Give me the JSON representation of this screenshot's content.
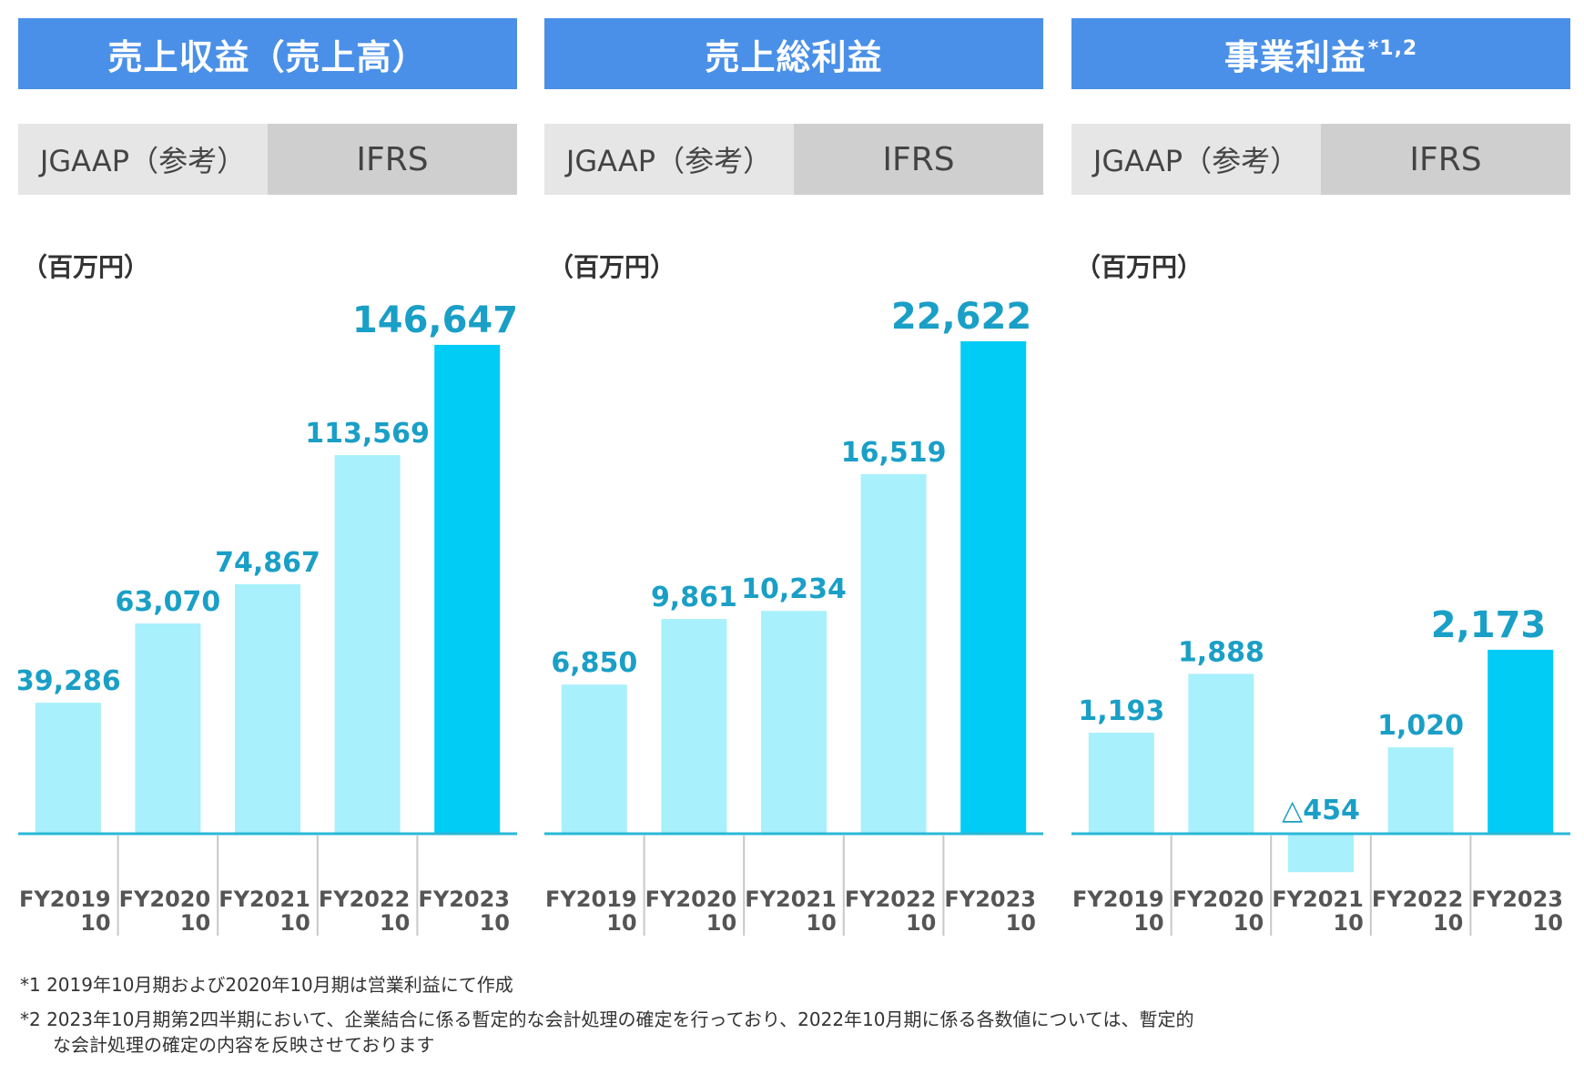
{
  "colors": {
    "title_bg": "#4a90e8",
    "bar_jgaap": "#a8f0fc",
    "bar_ifrs": "#00ccf5",
    "value_label": "#1a9fc6",
    "axis": "#2ab8d6"
  },
  "standards": {
    "jgaap": "JGAAP（参考）",
    "ifrs": "IFRS"
  },
  "unit_label": "（百万円）",
  "chart_data": [
    {
      "type": "bar",
      "title": "売上収益（売上高）",
      "title_sup": "",
      "categories": [
        [
          "FY2019",
          "10"
        ],
        [
          "FY2020",
          "10"
        ],
        [
          "FY2021",
          "10"
        ],
        [
          "FY2022",
          "10"
        ],
        [
          "FY2023",
          "10"
        ]
      ],
      "values": [
        39286,
        63070,
        74867,
        113569,
        146647
      ],
      "value_labels": [
        "39,286",
        "63,070",
        "74,867",
        "113,569",
        "146,647"
      ],
      "standard": [
        "JGAAP",
        "JGAAP",
        "JGAAP",
        "JGAAP",
        "IFRS"
      ],
      "ylim": [
        0,
        160000
      ]
    },
    {
      "type": "bar",
      "title": "売上総利益",
      "title_sup": "",
      "categories": [
        [
          "FY2019",
          "10"
        ],
        [
          "FY2020",
          "10"
        ],
        [
          "FY2021",
          "10"
        ],
        [
          "FY2022",
          "10"
        ],
        [
          "FY2023",
          "10"
        ]
      ],
      "values": [
        6850,
        9861,
        10234,
        16519,
        22622
      ],
      "value_labels": [
        "6,850",
        "9,861",
        "10,234",
        "16,519",
        "22,622"
      ],
      "standard": [
        "JGAAP",
        "JGAAP",
        "JGAAP",
        "JGAAP",
        "IFRS"
      ],
      "ylim": [
        0,
        24500
      ]
    },
    {
      "type": "bar",
      "title": "事業利益",
      "title_sup": "*1,2",
      "categories": [
        [
          "FY2019",
          "10"
        ],
        [
          "FY2020",
          "10"
        ],
        [
          "FY2021",
          "10"
        ],
        [
          "FY2022",
          "10"
        ],
        [
          "FY2023",
          "10"
        ]
      ],
      "values": [
        1193,
        1888,
        -454,
        1020,
        2173
      ],
      "value_labels": [
        "1,193",
        "1,888",
        "△454",
        "1,020",
        "2,173"
      ],
      "standard": [
        "JGAAP",
        "JGAAP",
        "JGAAP",
        "JGAAP",
        "IFRS"
      ],
      "ylim": [
        -1000,
        6300
      ]
    }
  ],
  "footnotes": [
    "*1 2019年10月期および2020年10月期は営業利益にて作成",
    "*2 2023年10月期第2四半期において、企業結合に係る暫定的な会計処理の確定を行っており、2022年10月期に係る各数値については、暫定的",
    "な会計処理の確定の内容を反映させております"
  ]
}
